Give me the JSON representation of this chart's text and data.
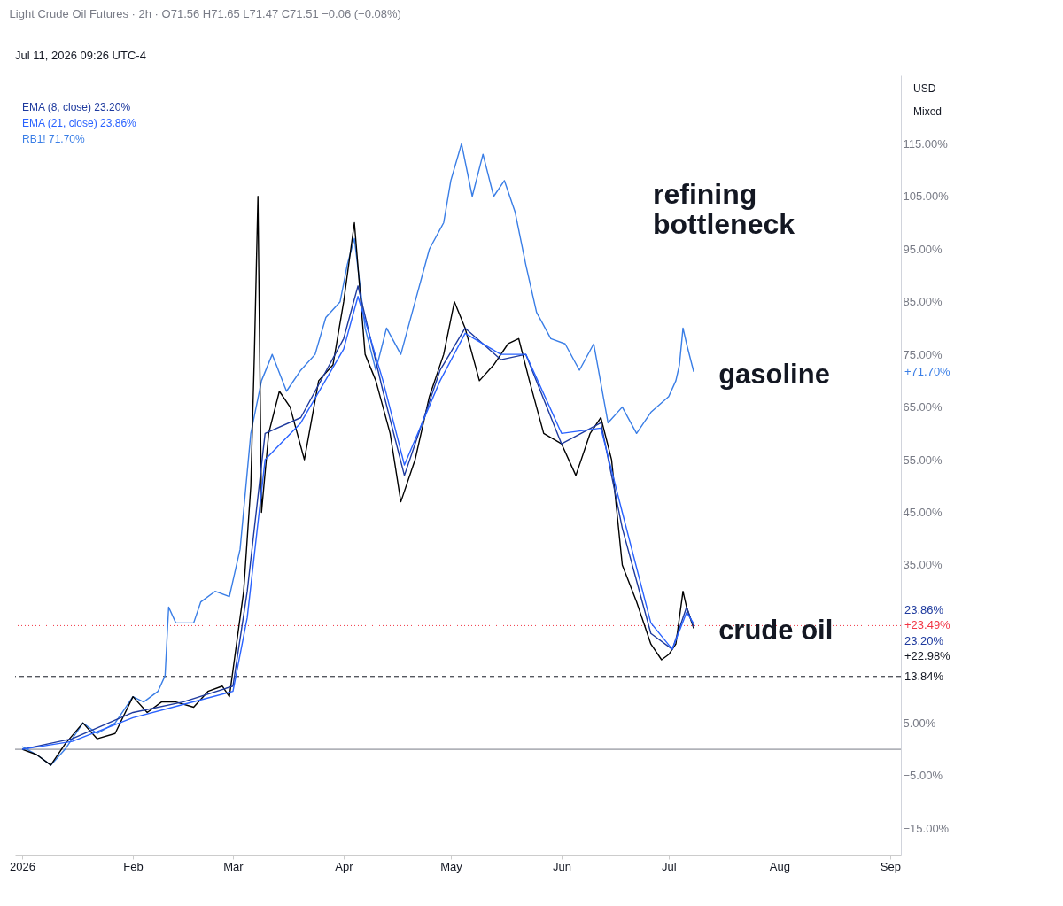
{
  "chart_data": {
    "type": "line",
    "title": "Light Crude Oil Futures · 2h · O71.56 H71.65 L71.47 C71.51 −0.06 (−0.08%)",
    "xlim": [
      "2025-12-30",
      "2026-09-04"
    ],
    "xticks": [
      {
        "value": "2026-01-01",
        "label": "2026"
      },
      {
        "value": "2026-02-01",
        "label": "Feb"
      },
      {
        "value": "2026-03-01",
        "label": "Mar"
      },
      {
        "value": "2026-04-01",
        "label": "Apr"
      },
      {
        "value": "2026-05-01",
        "label": "May"
      },
      {
        "value": "2026-06-01",
        "label": "Jun"
      },
      {
        "value": "2026-07-01",
        "label": "Jul"
      },
      {
        "value": "2026-08-01",
        "label": "Aug"
      },
      {
        "value": "2026-09-01",
        "label": "Sep"
      }
    ],
    "ylim": [
      -20,
      128
    ],
    "yticks": [
      {
        "value": -15,
        "label": "−15.00%"
      },
      {
        "value": -5,
        "label": "−5.00%"
      },
      {
        "value": 5,
        "label": "5.00%"
      },
      {
        "value": 35,
        "label": "35.00%"
      },
      {
        "value": 45,
        "label": "45.00%"
      },
      {
        "value": 55,
        "label": "55.00%"
      },
      {
        "value": 65,
        "label": "65.00%"
      },
      {
        "value": 75,
        "label": "75.00%"
      },
      {
        "value": 85,
        "label": "85.00%"
      },
      {
        "value": 95,
        "label": "95.00%"
      },
      {
        "value": 105,
        "label": "105.00%"
      },
      {
        "value": 115,
        "label": "115.00%"
      }
    ],
    "grid": false,
    "series": [
      {
        "name": "gasoline",
        "color": "#3a7ee6",
        "x": [
          "2026-01-01",
          "2026-01-05",
          "2026-01-09",
          "2026-01-13",
          "2026-01-18",
          "2026-01-22",
          "2026-01-27",
          "2026-02-01",
          "2026-02-04",
          "2026-02-08",
          "2026-02-10",
          "2026-02-11",
          "2026-02-13",
          "2026-02-18",
          "2026-02-20",
          "2026-02-24",
          "2026-02-28",
          "2026-03-03",
          "2026-03-06",
          "2026-03-09",
          "2026-03-12",
          "2026-03-16",
          "2026-03-20",
          "2026-03-24",
          "2026-03-27",
          "2026-03-31",
          "2026-04-02",
          "2026-04-04",
          "2026-04-07",
          "2026-04-10",
          "2026-04-13",
          "2026-04-17",
          "2026-04-21",
          "2026-04-25",
          "2026-04-29",
          "2026-05-01",
          "2026-05-04",
          "2026-05-07",
          "2026-05-10",
          "2026-05-13",
          "2026-05-16",
          "2026-05-19",
          "2026-05-22",
          "2026-05-25",
          "2026-05-29",
          "2026-06-02",
          "2026-06-06",
          "2026-06-10",
          "2026-06-14",
          "2026-06-18",
          "2026-06-22",
          "2026-06-26",
          "2026-07-01",
          "2026-07-03",
          "2026-07-04",
          "2026-07-05",
          "2026-07-06",
          "2026-07-08"
        ],
        "values": [
          0.5,
          -1,
          -3,
          0,
          5,
          3,
          5,
          10,
          9,
          11,
          14,
          27,
          24,
          24,
          28,
          30,
          29,
          38,
          60,
          70,
          75,
          68,
          72,
          75,
          82,
          85,
          92,
          97,
          80,
          72,
          80,
          75,
          85,
          95,
          100,
          108,
          115,
          105,
          113,
          105,
          108,
          102,
          92,
          83,
          78,
          77,
          72,
          77,
          62,
          65,
          60,
          64,
          67,
          70,
          73,
          80,
          77,
          71.7
        ]
      },
      {
        "name": "crude oil",
        "color": "#000000",
        "x": [
          "2026-01-01",
          "2026-01-05",
          "2026-01-09",
          "2026-01-13",
          "2026-01-18",
          "2026-01-22",
          "2026-01-27",
          "2026-02-01",
          "2026-02-05",
          "2026-02-09",
          "2026-02-13",
          "2026-02-18",
          "2026-02-22",
          "2026-02-26",
          "2026-02-28",
          "2026-03-02",
          "2026-03-04",
          "2026-03-06",
          "2026-03-07",
          "2026-03-08",
          "2026-03-09",
          "2026-03-11",
          "2026-03-14",
          "2026-03-17",
          "2026-03-21",
          "2026-03-25",
          "2026-03-29",
          "2026-04-01",
          "2026-04-04",
          "2026-04-07",
          "2026-04-10",
          "2026-04-14",
          "2026-04-17",
          "2026-04-21",
          "2026-04-25",
          "2026-04-29",
          "2026-05-02",
          "2026-05-05",
          "2026-05-09",
          "2026-05-13",
          "2026-05-17",
          "2026-05-20",
          "2026-05-23",
          "2026-05-27",
          "2026-06-01",
          "2026-06-05",
          "2026-06-09",
          "2026-06-12",
          "2026-06-15",
          "2026-06-18",
          "2026-06-22",
          "2026-06-26",
          "2026-06-29",
          "2026-07-01",
          "2026-07-03",
          "2026-07-05",
          "2026-07-06",
          "2026-07-08"
        ],
        "values": [
          0,
          -1,
          -3,
          1,
          5,
          2,
          3,
          10,
          7,
          9,
          9,
          8,
          11,
          12,
          10,
          20,
          30,
          50,
          75,
          105,
          45,
          60,
          68,
          65,
          55,
          70,
          73,
          85,
          100,
          75,
          70,
          60,
          47,
          55,
          67,
          75,
          85,
          80,
          70,
          73,
          77,
          78,
          70,
          60,
          58,
          52,
          60,
          63,
          55,
          35,
          28,
          20,
          17,
          18,
          20,
          30,
          27,
          22.98
        ]
      },
      {
        "color": "#1e3a9e",
        "x": [
          "2026-01-01",
          "2026-01-15",
          "2026-02-01",
          "2026-02-15",
          "2026-03-01",
          "2026-03-05",
          "2026-03-10",
          "2026-03-20",
          "2026-04-01",
          "2026-04-05",
          "2026-04-12",
          "2026-04-18",
          "2026-04-28",
          "2026-05-05",
          "2026-05-15",
          "2026-05-22",
          "2026-06-01",
          "2026-06-12",
          "2026-06-18",
          "2026-06-26",
          "2026-07-02",
          "2026-07-06",
          "2026-07-08"
        ],
        "values": [
          0,
          2,
          7,
          9,
          12,
          30,
          60,
          63,
          78,
          88,
          68,
          52,
          72,
          80,
          74,
          75,
          58,
          62,
          42,
          22,
          19,
          27,
          23.2
        ]
      },
      {
        "color": "#2962ff",
        "x": [
          "2026-01-01",
          "2026-01-15",
          "2026-02-01",
          "2026-02-15",
          "2026-03-01",
          "2026-03-05",
          "2026-03-10",
          "2026-03-20",
          "2026-04-01",
          "2026-04-05",
          "2026-04-12",
          "2026-04-18",
          "2026-04-28",
          "2026-05-05",
          "2026-05-15",
          "2026-05-22",
          "2026-06-01",
          "2026-06-12",
          "2026-06-18",
          "2026-06-26",
          "2026-07-02",
          "2026-07-06",
          "2026-07-08"
        ],
        "values": [
          0,
          1.5,
          6,
          8.5,
          11,
          25,
          55,
          62,
          76,
          86,
          70,
          54,
          70,
          79,
          75,
          75,
          60,
          61,
          45,
          24,
          19,
          26,
          23.86
        ]
      }
    ],
    "ref_lines": [
      {
        "axis": "y",
        "value": 0,
        "color": "#787b86",
        "line_style": "solid"
      },
      {
        "axis": "y",
        "value": 23.49,
        "label": "+23.49%",
        "color": "#f23645",
        "line_style": "dotted"
      },
      {
        "axis": "y",
        "value": 13.84,
        "label": "13.84%",
        "color": "#131722",
        "line_style": "dashed"
      }
    ],
    "annotations": [
      "Jul 11, 2026 09:26 UTC-4",
      "EMA (8, close) 23.20%",
      "EMA (21, close) 23.86%",
      "RB1! 71.70%",
      "refining bottleneck",
      "USD",
      "Mixed",
      "+71.70%",
      "23.86%",
      "23.20%",
      "+22.98%"
    ]
  }
}
